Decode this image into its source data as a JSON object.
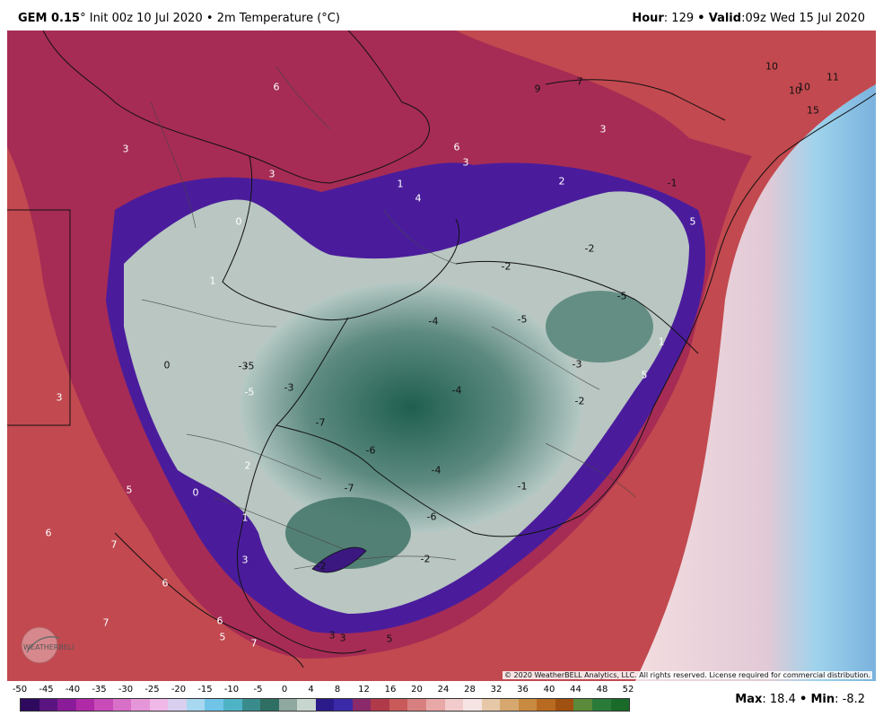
{
  "header": {
    "model": "GEM 0.15",
    "degree_symbol": "°",
    "init": "Init 00z 10 Jul 2020",
    "separator": "•",
    "field": "2m Temperature (°C)",
    "hour_label": "Hour",
    "hour_value": ": 129",
    "valid_label": "Valid",
    "valid_value": ":09z Wed 15 Jul 2020"
  },
  "map": {
    "credit": "© 2020 WeatherBELL Analytics, LLC. All rights reserved. License required for commercial distribution.",
    "logo_text": "WEATHERBELL",
    "labels": [
      "10",
      "11",
      "10",
      "10",
      "15",
      "7",
      "9",
      "6",
      "3",
      "6",
      "3",
      "3",
      "3",
      "1",
      "4",
      "2",
      "-1",
      "0",
      "5",
      "1",
      "-2",
      "-5",
      "-5",
      "-2",
      "-4",
      "-5",
      "1",
      "-3",
      "-4",
      "-2",
      "5",
      "0",
      "-3",
      "-5",
      "-3",
      "3",
      "-7",
      "-6",
      "-4",
      "2",
      "-7",
      "-1",
      "-6",
      "0",
      "5",
      "6",
      "1",
      "7",
      "3",
      "-2",
      "-2",
      "6",
      "6",
      "7",
      "5",
      "7",
      "3",
      "3",
      "5"
    ]
  },
  "colorbar": {
    "ticks": [
      "-50",
      "-45",
      "-40",
      "-35",
      "-30",
      "-25",
      "-20",
      "-15",
      "-10",
      "-5",
      "0",
      "4",
      "8",
      "12",
      "16",
      "20",
      "24",
      "28",
      "32",
      "36",
      "40",
      "44",
      "48",
      "52"
    ],
    "colors": [
      "#2d0a5e",
      "#5a1480",
      "#8a1c9a",
      "#b02aa8",
      "#c84bb8",
      "#d870c8",
      "#e596d8",
      "#f0b8e6",
      "#d9d0f0",
      "#a8d8f0",
      "#6fc4e8",
      "#4fb3c6",
      "#3a8c8c",
      "#2f6e62",
      "#8fa8a0",
      "#c8d6d0",
      "#2a1a8a",
      "#3a2aa8",
      "#8a2a6a",
      "#b03a4a",
      "#c85a5a",
      "#d88080",
      "#e8a8a8",
      "#f2cccc",
      "#f6e4e4",
      "#e6c8a8",
      "#d6a870",
      "#c88a40",
      "#b86a20",
      "#a05010",
      "#5a8a3a",
      "#2a7a3a",
      "#1a6a2a"
    ],
    "max_label": "Max",
    "max_value": ": 18.4",
    "min_label": "Min",
    "min_value": ": -8.2"
  }
}
